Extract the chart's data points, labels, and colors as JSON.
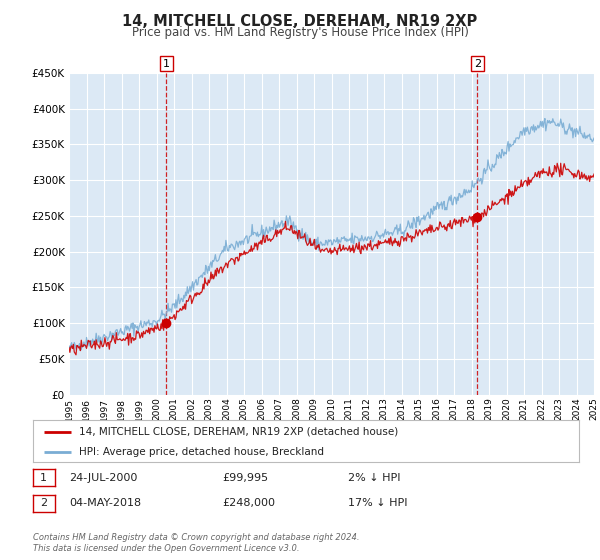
{
  "title": "14, MITCHELL CLOSE, DEREHAM, NR19 2XP",
  "subtitle": "Price paid vs. HM Land Registry's House Price Index (HPI)",
  "legend_line1": "14, MITCHELL CLOSE, DEREHAM, NR19 2XP (detached house)",
  "legend_line2": "HPI: Average price, detached house, Breckland",
  "marker1_date": "24-JUL-2000",
  "marker1_price": "£99,995",
  "marker1_hpi": "2% ↓ HPI",
  "marker1_year": 2000.56,
  "marker1_value": 99995,
  "marker2_date": "04-MAY-2018",
  "marker2_price": "£248,000",
  "marker2_hpi": "17% ↓ HPI",
  "marker2_year": 2018.34,
  "marker2_value": 248000,
  "xmin": 1995,
  "xmax": 2025,
  "ymin": 0,
  "ymax": 450000,
  "plot_bg": "#dce9f5",
  "line_red": "#cc0000",
  "line_blue": "#7aadd4",
  "grid_color": "#ffffff",
  "marker_box_edge": "#cc0000",
  "footer": "Contains HM Land Registry data © Crown copyright and database right 2024.\nThis data is licensed under the Open Government Licence v3.0."
}
